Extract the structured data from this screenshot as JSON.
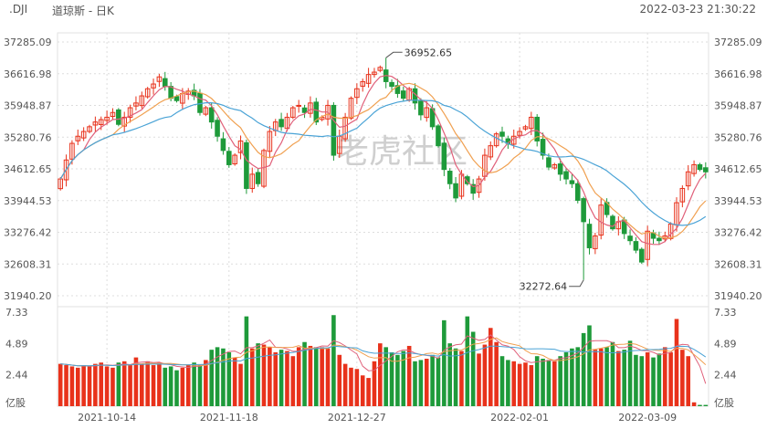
{
  "header": {
    "ticker": ".DJI",
    "title": "道琼斯 - 日K",
    "timestamp": "2022-03-23 21:30:22"
  },
  "watermark": "老虎社区",
  "colors": {
    "up": "#e8321b",
    "down": "#1e9a3a",
    "ma5": "#e0607a",
    "ma10": "#f0a050",
    "ma20": "#4aa3d6",
    "grid": "#dddddd"
  },
  "chart_data": [
    {
      "type": "candlestick",
      "title": "道琼斯 - 日K",
      "x_tick_labels": [
        "2021-10-14",
        "2021-11-18",
        "2021-12-27",
        "2022-02-01",
        "2022-03-09"
      ],
      "y_tick_labels": [
        "37285.09",
        "36616.98",
        "35948.87",
        "35280.76",
        "34612.65",
        "33944.53",
        "33276.42",
        "32608.31",
        "31940.20"
      ],
      "ylim": [
        31940.2,
        37285.09
      ],
      "grid": true,
      "annotations": [
        {
          "text": "36952.65",
          "x_index": 56,
          "value": 36952.65
        },
        {
          "text": "32272.64",
          "x_index": 90,
          "value": 32272.64
        }
      ],
      "close": [
        34400,
        34800,
        35150,
        35300,
        35400,
        35500,
        35600,
        35650,
        35700,
        35800,
        35550,
        35700,
        35900,
        36000,
        36150,
        36300,
        36400,
        36550,
        36350,
        36100,
        36050,
        36200,
        36250,
        36150,
        35800,
        35900,
        35600,
        35300,
        35000,
        34700,
        34900,
        35200,
        34200,
        34500,
        34300,
        35000,
        35400,
        35600,
        35500,
        35700,
        35900,
        35950,
        35800,
        36000,
        35600,
        35700,
        35950,
        34900,
        35300,
        35700,
        36100,
        36300,
        36450,
        36600,
        36650,
        36750,
        36450,
        36350,
        36200,
        36100,
        36300,
        36000,
        35750,
        35900,
        35500,
        35100,
        34600,
        34300,
        34000,
        34500,
        34300,
        34100,
        34400,
        34900,
        35100,
        35350,
        35300,
        35150,
        35300,
        35400,
        35500,
        35700,
        35200,
        34900,
        34650,
        34700,
        34500,
        34400,
        34300,
        33950,
        33500,
        32950,
        33200,
        33850,
        33650,
        33350,
        33500,
        33250,
        33100,
        32900,
        32650,
        33300,
        33150,
        33100,
        33200,
        33450,
        33900,
        34200,
        34550,
        34700,
        34600,
        34550
      ],
      "volume_ylim": [
        0,
        7.33
      ],
      "volume_tick_labels": [
        "7.33",
        "4.89",
        "2.44"
      ],
      "volume_unit": "亿股",
      "volume": [
        3.3,
        3.2,
        3.1,
        3.0,
        3.2,
        3.1,
        3.3,
        3.4,
        3.1,
        3.0,
        3.4,
        3.5,
        3.2,
        3.8,
        3.3,
        3.5,
        3.2,
        3.4,
        3.0,
        3.1,
        2.8,
        3.0,
        3.2,
        3.4,
        3.2,
        3.6,
        4.4,
        4.6,
        4.5,
        4.2,
        3.8,
        3.3,
        7.0,
        4.5,
        4.9,
        4.8,
        4.6,
        4.2,
        4.4,
        4.3,
        3.9,
        4.6,
        5.0,
        4.7,
        4.6,
        4.6,
        4.5,
        7.1,
        4.0,
        3.3,
        3.0,
        2.9,
        2.4,
        2.2,
        3.5,
        4.9,
        4.6,
        4.2,
        4.0,
        4.3,
        4.7,
        3.5,
        3.6,
        3.7,
        4.0,
        3.8,
        6.7,
        4.9,
        4.5,
        4.3,
        7.0,
        5.8,
        4.1,
        4.8,
        6.1,
        5.0,
        3.9,
        3.6,
        3.5,
        3.3,
        3.4,
        3.2,
        3.9,
        3.7,
        3.6,
        3.5,
        3.9,
        4.2,
        4.5,
        4.6,
        5.7,
        6.3,
        4.4,
        4.5,
        4.6,
        5.0,
        4.3,
        4.4,
        5.1,
        4.0,
        3.9,
        4.2,
        3.8,
        4.1,
        4.6,
        4.2,
        6.8,
        4.4,
        3.9,
        0.3,
        0.1,
        0.1
      ]
    }
  ]
}
